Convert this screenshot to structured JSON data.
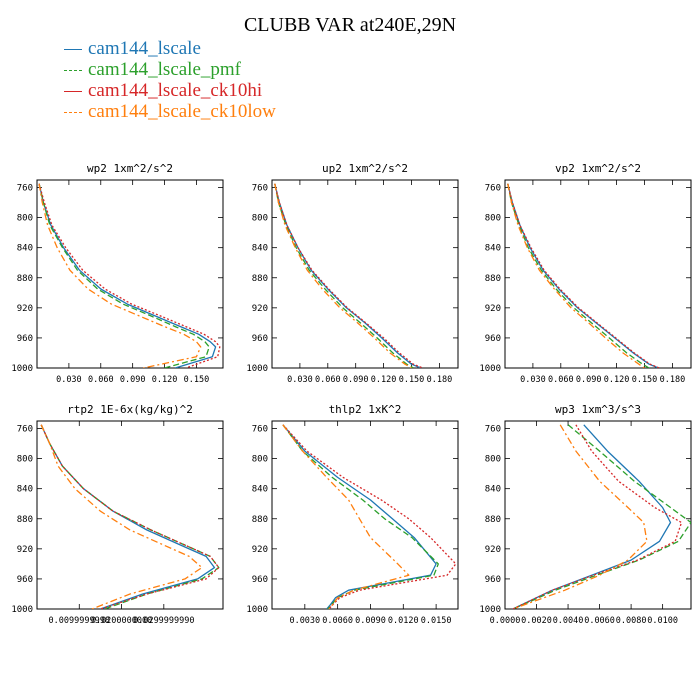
{
  "title": "CLUBB VAR at240E,29N",
  "legend": [
    {
      "label": "cam144_lscale",
      "color": "#1f77b4",
      "style": "solid"
    },
    {
      "label": "cam144_lscale_pmf",
      "color": "#2ca02c",
      "style": "dashed"
    },
    {
      "label": "cam144_lscale_ck10hi",
      "color": "#d62728",
      "style": "dotted"
    },
    {
      "label": "cam144_lscale_ck10low",
      "color": "#ff7f0e",
      "style": "dashdot"
    }
  ],
  "chart_data": [
    {
      "type": "line",
      "title": "wp2  1xm^2/s^2",
      "ylim": [
        1000,
        750
      ],
      "xlim": [
        0,
        0.175
      ],
      "yticks": [
        "760",
        "800",
        "840",
        "880",
        "920",
        "960",
        "1000"
      ],
      "xticks": [
        "0.030",
        "0.060",
        "0.090",
        "0.120",
        "0.150"
      ],
      "xtick_values": [
        0.03,
        0.06,
        0.09,
        0.12,
        0.15
      ],
      "ytick_values": [
        760,
        800,
        840,
        880,
        920,
        960,
        1000
      ],
      "series": [
        {
          "name": "cam144_lscale",
          "color": "#1f77b4",
          "style": "solid",
          "x": [
            0.002,
            0.006,
            0.013,
            0.025,
            0.04,
            0.06,
            0.085,
            0.11,
            0.135,
            0.152,
            0.163,
            0.168,
            0.165,
            0.13
          ],
          "y": [
            755,
            780,
            810,
            840,
            870,
            895,
            915,
            930,
            945,
            955,
            965,
            972,
            985,
            1000
          ]
        },
        {
          "name": "cam144_lscale_pmf",
          "color": "#2ca02c",
          "style": "dashed",
          "x": [
            0.002,
            0.006,
            0.012,
            0.024,
            0.038,
            0.057,
            0.081,
            0.106,
            0.13,
            0.147,
            0.158,
            0.162,
            0.159,
            0.12
          ],
          "y": [
            755,
            780,
            810,
            840,
            870,
            895,
            915,
            930,
            945,
            955,
            965,
            972,
            985,
            1000
          ]
        },
        {
          "name": "cam144_lscale_ck10hi",
          "color": "#d62728",
          "style": "dotted",
          "x": [
            0.002,
            0.007,
            0.014,
            0.027,
            0.043,
            0.064,
            0.089,
            0.115,
            0.14,
            0.157,
            0.168,
            0.172,
            0.17,
            0.14
          ],
          "y": [
            755,
            780,
            810,
            840,
            870,
            895,
            915,
            930,
            945,
            955,
            965,
            972,
            985,
            1000
          ]
        },
        {
          "name": "cam144_lscale_ck10low",
          "color": "#ff7f0e",
          "style": "dashdot",
          "x": [
            0.002,
            0.005,
            0.01,
            0.019,
            0.031,
            0.048,
            0.07,
            0.095,
            0.12,
            0.138,
            0.15,
            0.154,
            0.15,
            0.1
          ],
          "y": [
            755,
            780,
            810,
            840,
            870,
            895,
            915,
            930,
            945,
            955,
            965,
            972,
            985,
            1000
          ]
        }
      ]
    },
    {
      "type": "line",
      "title": "up2  1xm^2/s^2",
      "ylim": [
        1000,
        750
      ],
      "xlim": [
        0,
        0.2
      ],
      "yticks": [
        "760",
        "800",
        "840",
        "880",
        "920",
        "960",
        "1000"
      ],
      "xticks": [
        "0.030",
        "0.060",
        "0.090",
        "0.120",
        "0.150",
        "0.180"
      ],
      "xtick_values": [
        0.03,
        0.06,
        0.09,
        0.12,
        0.15,
        0.18
      ],
      "ytick_values": [
        760,
        800,
        840,
        880,
        920,
        960,
        1000
      ],
      "series": [
        {
          "name": "cam144_lscale",
          "color": "#1f77b4",
          "style": "solid",
          "x": [
            0.003,
            0.008,
            0.016,
            0.028,
            0.042,
            0.06,
            0.08,
            0.1,
            0.118,
            0.135,
            0.15,
            0.16
          ],
          "y": [
            755,
            780,
            810,
            840,
            870,
            895,
            920,
            940,
            960,
            980,
            995,
            1000
          ]
        },
        {
          "name": "cam144_lscale_pmf",
          "color": "#2ca02c",
          "style": "dashed",
          "x": [
            0.003,
            0.007,
            0.015,
            0.026,
            0.04,
            0.057,
            0.076,
            0.095,
            0.113,
            0.13,
            0.145,
            0.152
          ],
          "y": [
            755,
            780,
            810,
            840,
            870,
            895,
            920,
            940,
            960,
            980,
            995,
            1000
          ]
        },
        {
          "name": "cam144_lscale_ck10hi",
          "color": "#d62728",
          "style": "dotted",
          "x": [
            0.003,
            0.008,
            0.016,
            0.028,
            0.043,
            0.061,
            0.081,
            0.101,
            0.12,
            0.137,
            0.152,
            0.162
          ],
          "y": [
            755,
            780,
            810,
            840,
            870,
            895,
            920,
            940,
            960,
            980,
            995,
            1000
          ]
        },
        {
          "name": "cam144_lscale_ck10low",
          "color": "#ff7f0e",
          "style": "dashdot",
          "x": [
            0.003,
            0.007,
            0.014,
            0.025,
            0.038,
            0.054,
            0.073,
            0.092,
            0.11,
            0.127,
            0.143,
            0.15
          ],
          "y": [
            755,
            780,
            810,
            840,
            870,
            895,
            920,
            940,
            960,
            980,
            995,
            1000
          ]
        }
      ]
    },
    {
      "type": "line",
      "title": "vp2  1xm^2/s^2",
      "ylim": [
        1000,
        750
      ],
      "xlim": [
        0,
        0.2
      ],
      "yticks": [
        "760",
        "800",
        "840",
        "880",
        "920",
        "960",
        "1000"
      ],
      "xticks": [
        "0.030",
        "0.060",
        "0.090",
        "0.120",
        "0.150",
        "0.180"
      ],
      "xtick_values": [
        0.03,
        0.06,
        0.09,
        0.12,
        0.15,
        0.18
      ],
      "ytick_values": [
        760,
        800,
        840,
        880,
        920,
        960,
        1000
      ],
      "series": [
        {
          "name": "cam144_lscale",
          "color": "#1f77b4",
          "style": "solid",
          "x": [
            0.003,
            0.008,
            0.016,
            0.027,
            0.041,
            0.058,
            0.078,
            0.098,
            0.118,
            0.138,
            0.155,
            0.165
          ],
          "y": [
            755,
            780,
            810,
            840,
            870,
            895,
            920,
            940,
            960,
            980,
            995,
            1000
          ]
        },
        {
          "name": "cam144_lscale_pmf",
          "color": "#2ca02c",
          "style": "dashed",
          "x": [
            0.003,
            0.007,
            0.015,
            0.025,
            0.039,
            0.055,
            0.074,
            0.093,
            0.112,
            0.131,
            0.148,
            0.155
          ],
          "y": [
            755,
            780,
            810,
            840,
            870,
            895,
            920,
            940,
            960,
            980,
            995,
            1000
          ]
        },
        {
          "name": "cam144_lscale_ck10hi",
          "color": "#d62728",
          "style": "dotted",
          "x": [
            0.003,
            0.008,
            0.016,
            0.028,
            0.042,
            0.059,
            0.079,
            0.099,
            0.119,
            0.139,
            0.156,
            0.166
          ],
          "y": [
            755,
            780,
            810,
            840,
            870,
            895,
            920,
            940,
            960,
            980,
            995,
            1000
          ]
        },
        {
          "name": "cam144_lscale_ck10low",
          "color": "#ff7f0e",
          "style": "dashdot",
          "x": [
            0.003,
            0.007,
            0.014,
            0.024,
            0.037,
            0.053,
            0.071,
            0.09,
            0.108,
            0.127,
            0.144,
            0.15
          ],
          "y": [
            755,
            780,
            810,
            840,
            870,
            895,
            920,
            940,
            960,
            980,
            995,
            1000
          ]
        }
      ]
    },
    {
      "type": "line",
      "title": "rtp2  1E-6x(kg/kg)^2",
      "ylim": [
        1000,
        750
      ],
      "xlim": [
        0,
        0.044
      ],
      "yticks": [
        "760",
        "800",
        "840",
        "880",
        "920",
        "960",
        "1000"
      ],
      "xticks": [
        "0.0099999998",
        "0.0200000000",
        "0.0299999990"
      ],
      "xtick_values": [
        0.01,
        0.02,
        0.03
      ],
      "ytick_values": [
        760,
        800,
        840,
        880,
        920,
        960,
        1000
      ],
      "series": [
        {
          "name": "cam144_lscale",
          "color": "#1f77b4",
          "style": "solid",
          "x": [
            0.001,
            0.003,
            0.006,
            0.011,
            0.018,
            0.026,
            0.034,
            0.04,
            0.042,
            0.038,
            0.025,
            0.015
          ],
          "y": [
            755,
            780,
            810,
            840,
            870,
            895,
            915,
            930,
            945,
            960,
            980,
            1000
          ]
        },
        {
          "name": "cam144_lscale_pmf",
          "color": "#2ca02c",
          "style": "dashed",
          "x": [
            0.001,
            0.003,
            0.006,
            0.011,
            0.018,
            0.027,
            0.035,
            0.041,
            0.043,
            0.039,
            0.026,
            0.016
          ],
          "y": [
            755,
            780,
            810,
            840,
            870,
            895,
            915,
            930,
            945,
            960,
            980,
            1000
          ]
        },
        {
          "name": "cam144_lscale_ck10hi",
          "color": "#d62728",
          "style": "dotted",
          "x": [
            0.001,
            0.003,
            0.006,
            0.011,
            0.018,
            0.027,
            0.035,
            0.041,
            0.043,
            0.04,
            0.026,
            0.015
          ],
          "y": [
            755,
            780,
            810,
            840,
            870,
            895,
            915,
            930,
            945,
            960,
            980,
            1000
          ]
        },
        {
          "name": "cam144_lscale_ck10low",
          "color": "#ff7f0e",
          "style": "dashdot",
          "x": [
            0.001,
            0.003,
            0.005,
            0.009,
            0.015,
            0.022,
            0.03,
            0.036,
            0.039,
            0.035,
            0.022,
            0.013
          ],
          "y": [
            755,
            780,
            810,
            840,
            870,
            895,
            915,
            930,
            945,
            960,
            980,
            1000
          ]
        }
      ]
    },
    {
      "type": "line",
      "title": "thlp2  1xK^2",
      "ylim": [
        1000,
        750
      ],
      "xlim": [
        0,
        0.017
      ],
      "yticks": [
        "760",
        "800",
        "840",
        "880",
        "920",
        "960",
        "1000"
      ],
      "xticks": [
        "0.0030",
        "0.0060",
        "0.0090",
        "0.0120",
        "0.0150"
      ],
      "xtick_values": [
        0.003,
        0.006,
        0.009,
        0.012,
        0.015
      ],
      "ytick_values": [
        760,
        800,
        840,
        880,
        920,
        960,
        1000
      ],
      "series": [
        {
          "name": "cam144_lscale",
          "color": "#1f77b4",
          "style": "solid",
          "x": [
            0.001,
            0.003,
            0.006,
            0.009,
            0.011,
            0.013,
            0.015,
            0.0145,
            0.007,
            0.0058,
            0.0053,
            0.005
          ],
          "y": [
            755,
            790,
            825,
            855,
            880,
            905,
            940,
            955,
            975,
            985,
            995,
            1000
          ]
        },
        {
          "name": "cam144_lscale_pmf",
          "color": "#2ca02c",
          "style": "dashed",
          "x": [
            0.001,
            0.0028,
            0.0055,
            0.0083,
            0.0103,
            0.0128,
            0.0152,
            0.0148,
            0.0075,
            0.006,
            0.0054,
            0.0051
          ],
          "y": [
            755,
            790,
            825,
            855,
            880,
            905,
            940,
            955,
            975,
            985,
            995,
            1000
          ]
        },
        {
          "name": "cam144_lscale_ck10hi",
          "color": "#d62728",
          "style": "dotted",
          "x": [
            0.001,
            0.0032,
            0.0065,
            0.01,
            0.0125,
            0.0145,
            0.0168,
            0.016,
            0.008,
            0.0062,
            0.0055,
            0.0052
          ],
          "y": [
            755,
            790,
            825,
            855,
            880,
            905,
            940,
            955,
            975,
            985,
            995,
            1000
          ]
        },
        {
          "name": "cam144_lscale_ck10low",
          "color": "#ff7f0e",
          "style": "dashdot",
          "x": [
            0.001,
            0.0028,
            0.005,
            0.007,
            0.008,
            0.009,
            0.0115,
            0.0125,
            0.0075,
            0.006,
            0.0055,
            0.0052
          ],
          "y": [
            755,
            790,
            825,
            855,
            880,
            905,
            940,
            955,
            975,
            985,
            995,
            1000
          ]
        }
      ]
    },
    {
      "type": "line",
      "title": "wp3  1xm^3/s^3",
      "ylim": [
        1000,
        750
      ],
      "xlim": [
        0,
        0.0118
      ],
      "yticks": [
        "760",
        "800",
        "840",
        "880",
        "920",
        "960",
        "1000"
      ],
      "xticks": [
        "0.0000",
        "0.0020",
        "0.0040",
        "0.0060",
        "0.0080",
        "0.0100"
      ],
      "xtick_values": [
        0.0,
        0.002,
        0.004,
        0.006,
        0.008,
        0.01
      ],
      "ytick_values": [
        760,
        800,
        840,
        880,
        920,
        960,
        1000
      ],
      "series": [
        {
          "name": "cam144_lscale",
          "color": "#1f77b4",
          "style": "solid",
          "x": [
            0.005,
            0.0065,
            0.0085,
            0.01,
            0.0105,
            0.0098,
            0.008,
            0.0055,
            0.003,
            0.0015,
            0.0005
          ],
          "y": [
            755,
            790,
            830,
            865,
            885,
            910,
            935,
            955,
            975,
            990,
            1000
          ]
        },
        {
          "name": "cam144_lscale_pmf",
          "color": "#2ca02c",
          "style": "dashed",
          "x": [
            0.004,
            0.006,
            0.0082,
            0.0105,
            0.0118,
            0.011,
            0.0085,
            0.0058,
            0.0032,
            0.0016,
            0.0005
          ],
          "y": [
            755,
            790,
            830,
            865,
            885,
            910,
            935,
            955,
            975,
            990,
            1000
          ]
        },
        {
          "name": "cam144_lscale_ck10hi",
          "color": "#d62728",
          "style": "dotted",
          "x": [
            0.0045,
            0.0055,
            0.0072,
            0.0095,
            0.0112,
            0.0108,
            0.0084,
            0.0056,
            0.003,
            0.0015,
            0.0005
          ],
          "y": [
            755,
            790,
            830,
            865,
            885,
            910,
            935,
            955,
            975,
            990,
            1000
          ]
        },
        {
          "name": "cam144_lscale_ck10low",
          "color": "#ff7f0e",
          "style": "dashdot",
          "x": [
            0.0035,
            0.0045,
            0.006,
            0.0078,
            0.0088,
            0.009,
            0.0078,
            0.006,
            0.0038,
            0.0018,
            0.0005
          ],
          "y": [
            755,
            790,
            830,
            865,
            885,
            910,
            935,
            955,
            975,
            990,
            1000
          ]
        }
      ]
    }
  ]
}
